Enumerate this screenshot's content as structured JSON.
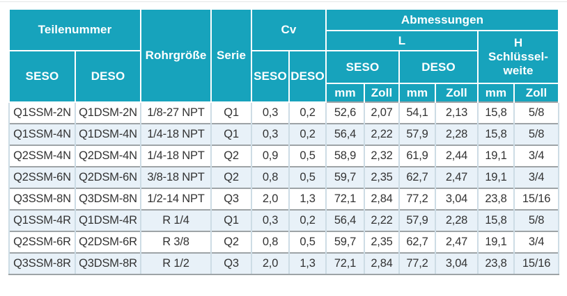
{
  "table": {
    "header": {
      "teilenummer": "Teilenummer",
      "rohrgroesse": "Rohrgröße",
      "serie": "Serie",
      "cv": "Cv",
      "abmessungen": "Abmessungen",
      "l": "L",
      "h_line1": "H",
      "h_line2": "Schlüssel-",
      "h_line3": "weite",
      "seso": "SESO",
      "deso": "DESO",
      "mm": "mm",
      "zoll": "Zoll"
    },
    "rows": [
      [
        "Q1SSM-2N",
        "Q1DSM-2N",
        "1/8-27 NPT",
        "Q1",
        "0,3",
        "0,2",
        "52,6",
        "2,07",
        "54,1",
        "2,13",
        "15,8",
        "5/8"
      ],
      [
        "Q1SSM-4N",
        "Q1DSM-4N",
        "1/4-18 NPT",
        "Q1",
        "0,3",
        "0,2",
        "56,4",
        "2,22",
        "57,9",
        "2,28",
        "15,8",
        "5/8"
      ],
      [
        "Q2SSM-4N",
        "Q2DSM-4N",
        "1/4-18 NPT",
        "Q2",
        "0,9",
        "0,5",
        "58,9",
        "2,32",
        "61,9",
        "2,44",
        "19,1",
        "3/4"
      ],
      [
        "Q2SSM-6N",
        "Q2DSM-6N",
        "3/8-18 NPT",
        "Q2",
        "0,8",
        "0,5",
        "59,7",
        "2,35",
        "62,7",
        "2,47",
        "19,1",
        "3/4"
      ],
      [
        "Q3SSM-8N",
        "Q3DSM-8N",
        "1/2-14 NPT",
        "Q3",
        "2,0",
        "1,3",
        "72,1",
        "2,84",
        "77,2",
        "3,04",
        "23,8",
        "15/16"
      ],
      [
        "Q1SSM-4R",
        "Q1DSM-4R",
        "R 1/4",
        "Q1",
        "0,3",
        "0,2",
        "56,4",
        "2,22",
        "57,9",
        "2,28",
        "15,8",
        "5/8"
      ],
      [
        "Q2SSM-6R",
        "Q2DSM-6R",
        "R 3/8",
        "Q2",
        "0,8",
        "0,5",
        "59,7",
        "2,35",
        "62,7",
        "2,47",
        "19,1",
        "3/4"
      ],
      [
        "Q3SSM-8R",
        "Q3DSM-8R",
        "R 1/2",
        "Q3",
        "2,0",
        "1,3",
        "72,1",
        "2,84",
        "77,2",
        "3,04",
        "23,8",
        "15/16"
      ]
    ],
    "colors": {
      "header_bg": "#17a3bc",
      "header_text": "#ffffff",
      "row_bg": "#ffffff",
      "row_alt_bg": "#e8f1f8",
      "data_text": "#333333",
      "horizontal_border": "#9da3a6",
      "vertical_border": "#cddce5"
    }
  }
}
